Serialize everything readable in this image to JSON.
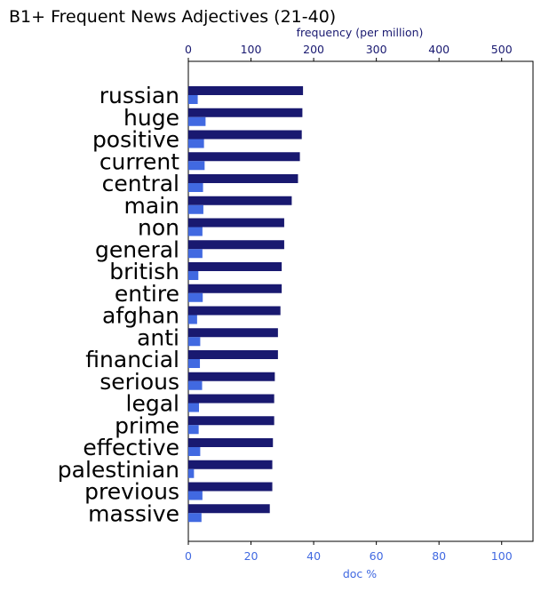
{
  "chart_data": {
    "type": "bar",
    "orientation": "horizontal",
    "title": "B1+ Frequent News Adjectives (21-40)",
    "categories": [
      "russian",
      "huge",
      "positive",
      "current",
      "central",
      "main",
      "non",
      "general",
      "british",
      "entire",
      "afghan",
      "anti",
      "financial",
      "serious",
      "legal",
      "prime",
      "effective",
      "palestinian",
      "previous",
      "massive"
    ],
    "top_axis": {
      "label": "frequency (per million)",
      "range": [
        0,
        550
      ],
      "ticks": [
        0,
        100,
        200,
        300,
        400,
        500
      ]
    },
    "bottom_axis": {
      "label": "doc %",
      "range": [
        0,
        110
      ],
      "ticks": [
        0,
        20,
        40,
        60,
        80,
        100
      ]
    },
    "series": [
      {
        "axis": "top",
        "values": [
          183,
          182,
          181,
          178,
          175,
          165,
          153,
          153,
          149,
          149,
          147,
          143,
          143,
          138,
          137,
          137,
          135,
          134,
          134,
          130
        ]
      },
      {
        "axis": "bottom",
        "values": [
          3.0,
          5.5,
          5.0,
          5.2,
          4.7,
          4.8,
          4.5,
          4.5,
          3.2,
          4.6,
          2.8,
          3.8,
          3.7,
          4.4,
          3.4,
          3.3,
          3.8,
          1.8,
          4.5,
          4.2
        ]
      }
    ],
    "colors": {
      "top_series": "#191970",
      "bottom_series": "#4169e1",
      "top_axis_text": "#191970",
      "bottom_axis_text": "#4169e1"
    },
    "grid": false,
    "legend": "none"
  }
}
